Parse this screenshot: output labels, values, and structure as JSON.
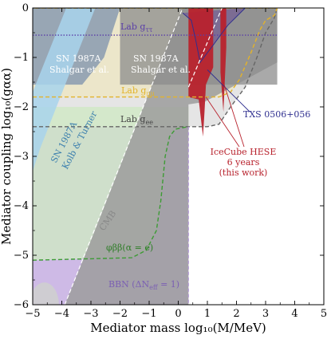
{
  "chart_data": {
    "type": "area",
    "xlabel": "Mediator mass log₁₀(M/MeV)",
    "ylabel": "Mediator coupling log₁₀(gαα)",
    "xlim": [
      -5,
      5
    ],
    "ylim": [
      -6,
      0
    ],
    "x_ticks": [
      -5,
      -4,
      -3,
      -2,
      -1,
      0,
      1,
      2,
      3,
      4,
      5
    ],
    "y_ticks": [
      0,
      -1,
      -2,
      -3,
      -4,
      -5,
      -6
    ],
    "x_tick_labels": [
      "−5",
      "−4",
      "−3",
      "−2",
      "−1",
      "0",
      "1",
      "2",
      "3",
      "4",
      "5"
    ],
    "y_tick_labels": [
      "0",
      "−1",
      "−2",
      "−3",
      "−4",
      "−5",
      "−6"
    ],
    "grid": false,
    "regions": [
      {
        "id": "bbn",
        "label": "BBN (ΔN",
        "label_sub": "eff",
        "label_tail": " = 1)",
        "color": "#c9b3e3",
        "points": [
          [
            -5,
            -6
          ],
          [
            -5,
            -2.4
          ],
          [
            0.35,
            -2.4
          ],
          [
            0.35,
            -6
          ]
        ]
      },
      {
        "id": "double-beta",
        "label": "φββ(α = e)",
        "color": "#cfe8c4",
        "points": [
          [
            -5,
            -5.1
          ],
          [
            -1.6,
            -5.05
          ],
          [
            -1.1,
            -4.9
          ],
          [
            -0.75,
            -4.5
          ],
          [
            -0.6,
            -3.9
          ],
          [
            -0.45,
            -3.0
          ],
          [
            -0.3,
            -2.6
          ],
          [
            -0.1,
            -2.45
          ],
          [
            0.35,
            -2.4
          ],
          [
            0.35,
            -2.0
          ],
          [
            -5,
            -2.0
          ]
        ]
      },
      {
        "id": "cmb",
        "label": "CMB",
        "color": "#9c9c9c",
        "points": [
          [
            -3.9,
            -6
          ],
          [
            -2.9,
            -4.55
          ],
          [
            -1.9,
            -3.05
          ],
          [
            -0.9,
            -1.55
          ],
          [
            0.15,
            0
          ],
          [
            3.4,
            0
          ],
          [
            3.4,
            -1.1
          ],
          [
            0.9,
            -1.9
          ],
          [
            0.35,
            -1.95
          ],
          [
            0.35,
            -6
          ]
        ]
      },
      {
        "id": "sn1987a-kolb-turner",
        "label": "SN 1987A",
        "label2": "Kolb & Turner",
        "color": "#a8d3ec",
        "points": [
          [
            -3.85,
            0
          ],
          [
            -2.85,
            0
          ],
          [
            -4.75,
            -2.85
          ],
          [
            -5,
            -3.3
          ],
          [
            -5,
            -1.7
          ]
        ]
      },
      {
        "id": "sn1987a-shalgar-left",
        "label": "SN 1987A",
        "label2": "Shalgar et al.",
        "color": "#8a9ab0",
        "points": [
          [
            -5,
            -1.55
          ],
          [
            -3.3,
            -1.55
          ],
          [
            -2.55,
            -1.0
          ],
          [
            -2.0,
            0
          ],
          [
            -5,
            0
          ]
        ]
      },
      {
        "id": "sn1987a-shalgar-right",
        "label": "SN 1987A",
        "label2": "Shalgar et al.",
        "color": "#8c8c8c",
        "points": [
          [
            -2.0,
            0
          ],
          [
            3.4,
            0
          ],
          [
            3.4,
            -1.55
          ],
          [
            -2.0,
            -1.55
          ]
        ]
      },
      {
        "id": "lab-gee",
        "label": "Lab g",
        "label_sub": "ee",
        "color": "#e0e0e0",
        "points": [
          [
            -5,
            -2.4
          ],
          [
            1.0,
            -2.4
          ],
          [
            1.4,
            -2.35
          ],
          [
            1.8,
            -2.0
          ],
          [
            2.3,
            -1.6
          ],
          [
            2.7,
            -1.0
          ],
          [
            3.0,
            -0.5
          ],
          [
            3.3,
            -0.2
          ],
          [
            3.4,
            0
          ],
          [
            -5,
            0
          ]
        ]
      },
      {
        "id": "lab-gmumu",
        "label": "Lab g",
        "label_sub": "μμ",
        "color": "#f3e6a8",
        "points": [
          [
            -5,
            -1.8
          ],
          [
            1.4,
            -1.8
          ],
          [
            1.8,
            -1.7
          ],
          [
            2.1,
            -1.45
          ],
          [
            2.5,
            -0.9
          ],
          [
            2.8,
            -0.45
          ],
          [
            3.0,
            -0.25
          ],
          [
            3.3,
            -0.15
          ],
          [
            3.4,
            0
          ],
          [
            -5,
            0
          ]
        ]
      },
      {
        "id": "lab-gtautau",
        "label": "Lab g",
        "label_sub": "ττ",
        "color": "#5a3ea8",
        "points": [
          [
            -5,
            -0.55
          ],
          [
            3.4,
            -0.55
          ]
        ]
      },
      {
        "id": "txs-0506",
        "label": "TXS 0506+056",
        "color": "#6a4c93",
        "points": [
          [
            0.15,
            -0.1
          ],
          [
            0.45,
            -0.25
          ],
          [
            0.6,
            -0.65
          ],
          [
            0.75,
            -1.1
          ],
          [
            1.2,
            -0.75
          ],
          [
            1.7,
            -0.35
          ],
          [
            2.3,
            0
          ]
        ]
      },
      {
        "id": "icecube-hese",
        "label": "IceCube HESE",
        "label2": "6 years",
        "label3": "(this work)",
        "color": "#b8222d",
        "points": [
          [
            0.35,
            0
          ],
          [
            1.2,
            0
          ],
          [
            1.2,
            -1.2
          ],
          [
            0.95,
            -1.55
          ],
          [
            0.9,
            -2.1
          ],
          [
            0.85,
            -2.6
          ],
          [
            0.7,
            -1.85
          ],
          [
            0.35,
            -1.8
          ]
        ]
      },
      {
        "id": "icecube-hese-spike",
        "label": "",
        "color": "#b8222d",
        "points": [
          [
            1.45,
            0
          ],
          [
            1.65,
            0
          ],
          [
            1.65,
            -0.8
          ],
          [
            1.55,
            -2.1
          ],
          [
            1.45,
            -1.3
          ]
        ]
      }
    ]
  }
}
